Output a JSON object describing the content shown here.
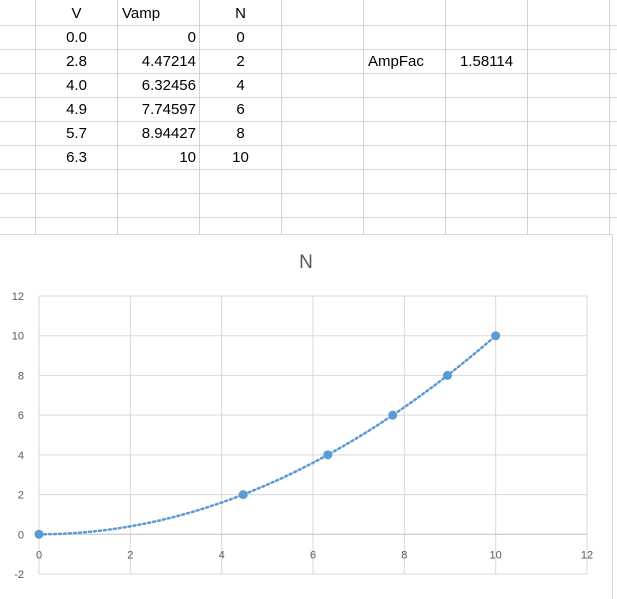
{
  "table": {
    "headers": {
      "v": "V",
      "vamp": "Vamp",
      "n": "N"
    },
    "rows": [
      {
        "v": "0.0",
        "vamp": "0",
        "n": "0"
      },
      {
        "v": "2.8",
        "vamp": "4.47214",
        "n": "2"
      },
      {
        "v": "4.0",
        "vamp": "6.32456",
        "n": "4"
      },
      {
        "v": "4.9",
        "vamp": "7.74597",
        "n": "6"
      },
      {
        "v": "5.7",
        "vamp": "8.94427",
        "n": "8"
      },
      {
        "v": "6.3",
        "vamp": "10",
        "n": "10"
      }
    ]
  },
  "ampfac": {
    "label": "AmpFac",
    "value": "1.58114"
  },
  "chart_data": {
    "type": "scatter",
    "title": "N",
    "x": [
      0,
      4.47214,
      6.32456,
      7.74597,
      8.94427,
      10
    ],
    "y": [
      0,
      2,
      4,
      6,
      8,
      10
    ],
    "trendline": "dotted-smooth",
    "xlim": [
      0,
      12
    ],
    "ylim": [
      -2,
      12
    ],
    "x_ticks": [
      "0",
      "2",
      "4",
      "6",
      "8",
      "10",
      "12"
    ],
    "y_ticks": [
      "-2",
      "0",
      "2",
      "4",
      "6",
      "8",
      "10",
      "12"
    ],
    "grid": true,
    "legend": "none",
    "color": "#5b9bd5"
  }
}
